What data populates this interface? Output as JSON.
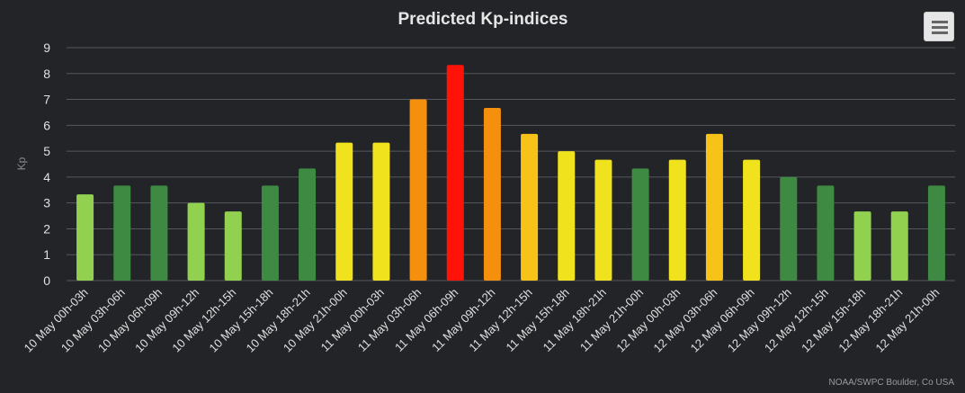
{
  "chart_data": {
    "type": "bar",
    "title": "Predicted Kp-indices",
    "ylabel": "Kp",
    "xlabel": "",
    "ylim": [
      0,
      9
    ],
    "yticks": [
      0,
      1,
      2,
      3,
      4,
      5,
      6,
      7,
      8,
      9
    ],
    "grid": true,
    "categories": [
      "10 May 00h-03h",
      "10 May 03h-06h",
      "10 May 06h-09h",
      "10 May 09h-12h",
      "10 May 12h-15h",
      "10 May 15h-18h",
      "10 May 18h-21h",
      "10 May 21h-00h",
      "11 May 00h-03h",
      "11 May 03h-06h",
      "11 May 06h-09h",
      "11 May 09h-12h",
      "11 May 12h-15h",
      "11 May 15h-18h",
      "11 May 18h-21h",
      "11 May 21h-00h",
      "12 May 00h-03h",
      "12 May 03h-06h",
      "12 May 06h-09h",
      "12 May 09h-12h",
      "12 May 12h-15h",
      "12 May 15h-18h",
      "12 May 18h-21h",
      "12 May 21h-00h"
    ],
    "values": [
      3.33,
      3.67,
      3.67,
      3.0,
      2.67,
      3.67,
      4.33,
      5.33,
      5.33,
      7.0,
      8.33,
      6.67,
      5.67,
      5.0,
      4.67,
      4.33,
      4.67,
      5.67,
      4.67,
      4.0,
      3.67,
      2.67,
      2.67,
      3.67
    ],
    "bar_colors": [
      "#92d050",
      "#3f8a42",
      "#3f8a42",
      "#92d050",
      "#92d050",
      "#3f8a42",
      "#3f8a42",
      "#f0e21c",
      "#f0e21c",
      "#f5900e",
      "#ff1208",
      "#f5900e",
      "#f7c318",
      "#f0e21c",
      "#f0e21c",
      "#3f8a42",
      "#f0e21c",
      "#f7c318",
      "#f0e21c",
      "#3f8a42",
      "#3f8a42",
      "#92d050",
      "#92d050",
      "#3f8a42"
    ]
  },
  "menu_icon": "hamburger-menu-icon",
  "credit": "NOAA/SWPC Boulder, Co USA",
  "colors": {
    "background": "#222428",
    "grid": "#55585d",
    "text": "#e0e0e0",
    "axis_title": "#8a8a8a"
  }
}
